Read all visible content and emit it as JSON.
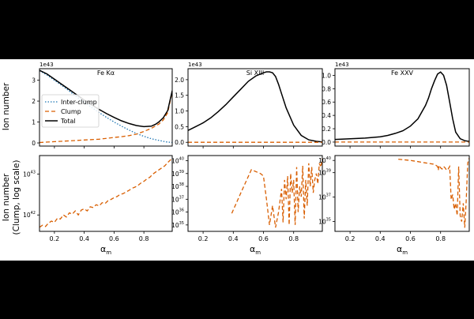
{
  "figure": {
    "background": "#000000",
    "panel_color": "#ffffff",
    "ylabel_top": "Ion number",
    "ylabel_bottom_line1": "Ion number",
    "ylabel_bottom_line2": "(Clump, log scale)",
    "xlabel_symbol": "α",
    "xlabel_subscript": "m",
    "offset_label": "1e43"
  },
  "chart_data": [
    {
      "type": "line",
      "title": "Fe Kα",
      "scale": "linear",
      "xlim": [
        0.1,
        0.99
      ],
      "ylim": [
        -0.15,
        3.55
      ],
      "xticks": [
        "0.2",
        "0.4",
        "0.6",
        "0.8"
      ],
      "yticks": [
        "0",
        "1",
        "2",
        "3"
      ],
      "offset_label": "1e43",
      "legend": {
        "location": "center-left",
        "entries": [
          "Inter-clump",
          "Clump",
          "Total"
        ]
      },
      "series": [
        {
          "name": "Inter-clump",
          "style": "dotted",
          "color": "#1f77b4",
          "x": [
            0.1,
            0.15,
            0.2,
            0.25,
            0.3,
            0.35,
            0.4,
            0.45,
            0.5,
            0.55,
            0.6,
            0.65,
            0.7,
            0.75,
            0.8,
            0.85,
            0.9,
            0.95,
            0.99
          ],
          "y": [
            3.45,
            3.25,
            3.0,
            2.75,
            2.48,
            2.2,
            1.95,
            1.7,
            1.45,
            1.22,
            1.0,
            0.8,
            0.62,
            0.45,
            0.32,
            0.2,
            0.12,
            0.05,
            0.02
          ]
        },
        {
          "name": "Clump",
          "style": "dashed",
          "color": "#d95f02",
          "x": [
            0.1,
            0.2,
            0.3,
            0.4,
            0.5,
            0.55,
            0.6,
            0.65,
            0.7,
            0.75,
            0.8,
            0.85,
            0.9,
            0.93,
            0.96,
            0.99
          ],
          "y": [
            0.02,
            0.06,
            0.1,
            0.14,
            0.18,
            0.22,
            0.26,
            0.3,
            0.35,
            0.42,
            0.55,
            0.7,
            0.9,
            1.1,
            1.45,
            2.45
          ]
        },
        {
          "name": "Total",
          "style": "solid",
          "color": "#000000",
          "x": [
            0.1,
            0.15,
            0.2,
            0.25,
            0.3,
            0.35,
            0.4,
            0.45,
            0.5,
            0.55,
            0.6,
            0.65,
            0.7,
            0.75,
            0.8,
            0.85,
            0.88,
            0.9,
            0.93,
            0.96,
            0.99
          ],
          "y": [
            3.47,
            3.3,
            3.05,
            2.8,
            2.55,
            2.3,
            2.05,
            1.82,
            1.6,
            1.4,
            1.22,
            1.06,
            0.93,
            0.83,
            0.78,
            0.8,
            0.9,
            1.0,
            1.2,
            1.55,
            2.5
          ]
        }
      ]
    },
    {
      "type": "line",
      "title": "Si XIII",
      "scale": "linear",
      "xlim": [
        0.1,
        0.99
      ],
      "ylim": [
        -0.12,
        2.35
      ],
      "xticks": [
        "0.2",
        "0.4",
        "0.6",
        "0.8"
      ],
      "yticks": [
        "0.0",
        "0.5",
        "1.0",
        "1.5",
        "2.0"
      ],
      "offset_label": "1e43",
      "series": [
        {
          "name": "Total",
          "style": "solid",
          "color": "#000000",
          "x": [
            0.1,
            0.15,
            0.2,
            0.25,
            0.3,
            0.35,
            0.4,
            0.45,
            0.5,
            0.55,
            0.6,
            0.62,
            0.64,
            0.66,
            0.68,
            0.7,
            0.72,
            0.75,
            0.8,
            0.85,
            0.9,
            0.95,
            0.99
          ],
          "y": [
            0.38,
            0.5,
            0.62,
            0.78,
            0.98,
            1.2,
            1.45,
            1.7,
            1.95,
            2.12,
            2.22,
            2.25,
            2.25,
            2.22,
            2.1,
            1.85,
            1.55,
            1.1,
            0.55,
            0.22,
            0.08,
            0.03,
            0.01
          ]
        },
        {
          "name": "Clump",
          "style": "dashed",
          "color": "#d95f02",
          "x": [
            0.1,
            0.99
          ],
          "y": [
            0.0,
            0.0
          ]
        }
      ]
    },
    {
      "type": "line",
      "title": "Fe XXV",
      "scale": "linear",
      "xlim": [
        0.1,
        0.99
      ],
      "ylim": [
        -0.06,
        1.1
      ],
      "xticks": [
        "0.2",
        "0.4",
        "0.6",
        "0.8"
      ],
      "yticks": [
        "0.0",
        "0.2",
        "0.4",
        "0.6",
        "0.8",
        "1.0"
      ],
      "offset_label": "1e43",
      "series": [
        {
          "name": "Total",
          "style": "solid",
          "color": "#000000",
          "x": [
            0.1,
            0.2,
            0.3,
            0.4,
            0.45,
            0.5,
            0.55,
            0.6,
            0.65,
            0.7,
            0.72,
            0.74,
            0.76,
            0.78,
            0.8,
            0.82,
            0.84,
            0.86,
            0.88,
            0.9,
            0.93,
            0.96,
            0.99
          ],
          "y": [
            0.04,
            0.05,
            0.06,
            0.08,
            0.1,
            0.13,
            0.17,
            0.24,
            0.35,
            0.55,
            0.66,
            0.8,
            0.92,
            1.02,
            1.05,
            1.0,
            0.85,
            0.6,
            0.35,
            0.15,
            0.05,
            0.02,
            0.01
          ]
        },
        {
          "name": "Clump",
          "style": "dashed",
          "color": "#d95f02",
          "x": [
            0.1,
            0.99
          ],
          "y": [
            0.0,
            0.0
          ]
        }
      ]
    },
    {
      "type": "line",
      "title": "",
      "scale": "log",
      "xlim": [
        0.1,
        0.99
      ],
      "ylim": [
        41.6,
        43.45
      ],
      "xticks": [
        "0.2",
        "0.4",
        "0.6",
        "0.8"
      ],
      "yticks": [
        {
          "base": "10",
          "exp": "42",
          "value": 42
        },
        {
          "base": "10",
          "exp": "43",
          "value": 43
        }
      ],
      "series": [
        {
          "name": "Clump",
          "style": "dashed",
          "color": "#d95f02",
          "x": [
            0.1,
            0.12,
            0.14,
            0.16,
            0.18,
            0.2,
            0.22,
            0.24,
            0.26,
            0.28,
            0.3,
            0.32,
            0.34,
            0.36,
            0.38,
            0.4,
            0.42,
            0.44,
            0.46,
            0.48,
            0.5,
            0.52,
            0.54,
            0.56,
            0.58,
            0.6,
            0.62,
            0.64,
            0.66,
            0.68,
            0.7,
            0.72,
            0.74,
            0.76,
            0.78,
            0.8,
            0.82,
            0.84,
            0.86,
            0.88,
            0.9,
            0.92,
            0.94,
            0.96,
            0.98,
            0.99
          ],
          "y": [
            41.7,
            41.75,
            41.72,
            41.8,
            41.85,
            41.82,
            41.92,
            41.9,
            42.0,
            41.95,
            42.05,
            42.02,
            42.1,
            42.0,
            42.12,
            42.15,
            42.1,
            42.2,
            42.18,
            42.25,
            42.22,
            42.3,
            42.28,
            42.35,
            42.38,
            42.42,
            42.45,
            42.5,
            42.52,
            42.56,
            42.6,
            42.65,
            42.68,
            42.72,
            42.78,
            42.82,
            42.88,
            42.92,
            43.0,
            43.05,
            43.1,
            43.15,
            43.2,
            43.28,
            43.35,
            43.4
          ]
        }
      ]
    },
    {
      "type": "line",
      "title": "",
      "scale": "log",
      "xlim": [
        0.1,
        0.99
      ],
      "ylim": [
        34.5,
        40.4
      ],
      "xticks": [
        "0.2",
        "0.4",
        "0.6",
        "0.8"
      ],
      "yticks": [
        {
          "base": "10",
          "exp": "35",
          "value": 35
        },
        {
          "base": "10",
          "exp": "36",
          "value": 36
        },
        {
          "base": "10",
          "exp": "37",
          "value": 37
        },
        {
          "base": "10",
          "exp": "38",
          "value": 38
        },
        {
          "base": "10",
          "exp": "39",
          "value": 39
        },
        {
          "base": "10",
          "exp": "40",
          "value": 40
        }
      ],
      "series": [
        {
          "name": "Clump",
          "style": "dashed",
          "color": "#d95f02",
          "x": [
            0.39,
            0.45,
            0.52,
            0.58,
            0.6,
            0.62,
            0.64,
            0.66,
            0.68,
            0.7,
            0.72,
            0.73,
            0.74,
            0.75,
            0.76,
            0.77,
            0.78,
            0.79,
            0.8,
            0.81,
            0.82,
            0.83,
            0.84,
            0.85,
            0.86,
            0.87,
            0.88,
            0.89,
            0.9,
            0.91,
            0.92,
            0.93,
            0.94,
            0.95,
            0.96,
            0.97,
            0.98,
            0.99
          ],
          "y": [
            35.9,
            37.5,
            39.3,
            39.0,
            38.8,
            37.0,
            35.0,
            36.5,
            34.8,
            36.0,
            37.8,
            35.2,
            38.5,
            37.0,
            38.8,
            35.0,
            39.0,
            37.5,
            38.5,
            35.0,
            39.5,
            36.0,
            38.0,
            37.2,
            39.6,
            35.5,
            38.5,
            36.5,
            39.8,
            38.0,
            39.5,
            37.5,
            38.5,
            39.0,
            38.2,
            39.8,
            39.5,
            40.2
          ]
        }
      ]
    },
    {
      "type": "line",
      "title": "",
      "scale": "log",
      "xlim": [
        0.1,
        0.99
      ],
      "ylim": [
        34.2,
        40.4
      ],
      "xticks": [
        "0.2",
        "0.4",
        "0.6",
        "0.8"
      ],
      "yticks": [
        {
          "base": "10",
          "exp": "35",
          "value": 35
        },
        {
          "base": "10",
          "exp": "37",
          "value": 37
        },
        {
          "base": "10",
          "exp": "39",
          "value": 39
        },
        {
          "base": "10",
          "exp": "40",
          "value": 40
        }
      ],
      "series": [
        {
          "name": "Clump",
          "style": "dashed",
          "color": "#d95f02",
          "x": [
            0.52,
            0.6,
            0.65,
            0.7,
            0.75,
            0.77,
            0.78,
            0.785,
            0.79,
            0.8,
            0.81,
            0.82,
            0.83,
            0.84,
            0.85,
            0.86,
            0.87,
            0.88,
            0.89,
            0.9,
            0.91,
            0.92,
            0.93,
            0.94,
            0.95,
            0.96,
            0.97,
            0.98,
            0.99
          ],
          "y": [
            40.1,
            40.0,
            39.9,
            39.8,
            39.7,
            39.6,
            39.5,
            39.2,
            39.6,
            39.4,
            39.3,
            39.5,
            39.4,
            39.2,
            39.3,
            39.5,
            36.8,
            37.2,
            36.0,
            36.5,
            35.5,
            39.5,
            35.5,
            35.0,
            36.5,
            34.5,
            36.8,
            39.8,
            40.2
          ]
        }
      ]
    }
  ]
}
